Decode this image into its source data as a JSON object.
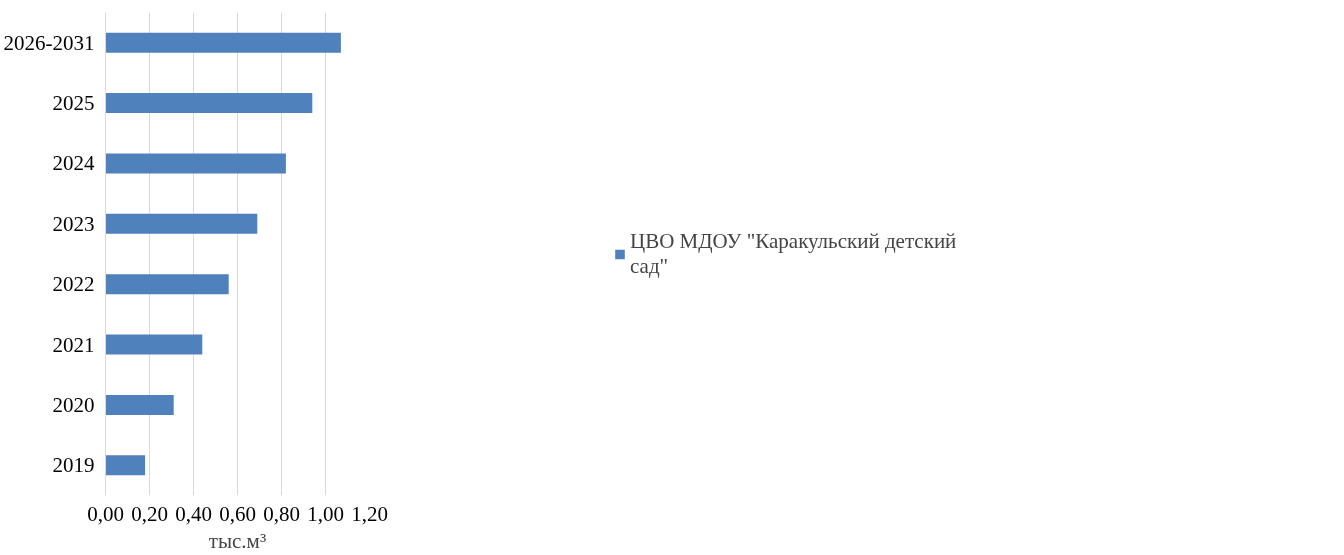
{
  "chart_data": {
    "type": "bar",
    "orientation": "horizontal",
    "xlabel": "тыс.м³",
    "categories": [
      "2026-2031",
      "2025",
      "2024",
      "2023",
      "2022",
      "2021",
      "2020",
      "2019"
    ],
    "series": [
      {
        "name": "ЦВО МДОУ \"Каракульский детский сад\"",
        "color": "#4f81bd",
        "values": [
          1.07,
          0.94,
          0.82,
          0.69,
          0.56,
          0.44,
          0.31,
          0.18
        ]
      }
    ],
    "xlim": [
      0,
      1.2
    ],
    "xticks": [
      {
        "value": 0,
        "label": "0,00"
      },
      {
        "value": 0.2,
        "label": "0,20"
      },
      {
        "value": 0.4,
        "label": "0,40"
      },
      {
        "value": 0.6,
        "label": "0,60"
      },
      {
        "value": 0.8,
        "label": "0,80"
      },
      {
        "value": 1.0,
        "label": "1,00"
      },
      {
        "value": 1.2,
        "label": "1,20"
      }
    ],
    "grid": "x",
    "legend": "right"
  }
}
